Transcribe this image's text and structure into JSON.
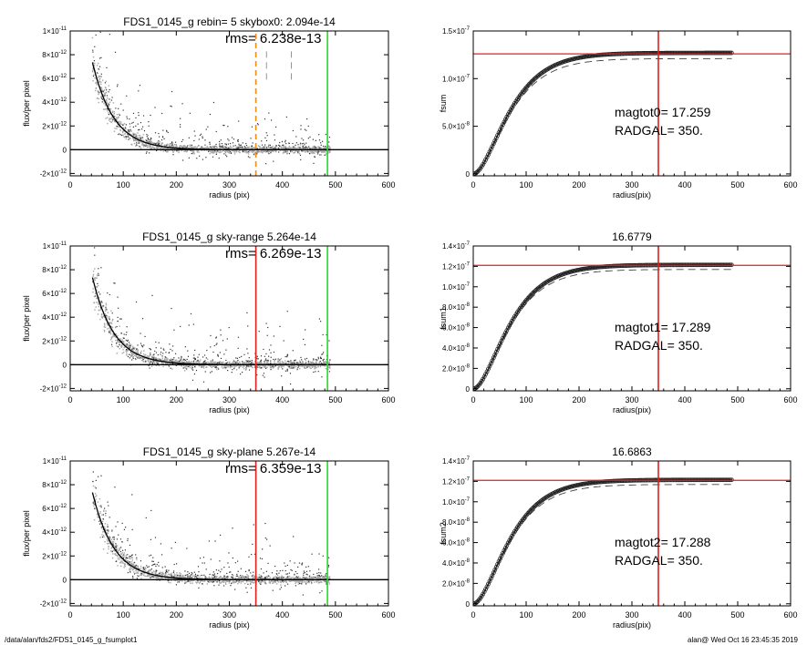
{
  "footer": {
    "left": "/data/alan/fds2/FDS1_0145_g_fsumplot1",
    "right": "alan@  Wed Oct 16 23:45:35 2019"
  },
  "colors": {
    "axis": "#000000",
    "scatter_light": "#a6a6a6",
    "scatter_dark": "#333333",
    "profile": "#000000",
    "red_line": "#e0201c",
    "green_line": "#22dd22",
    "orange_line": "#ee8a1c",
    "gray_dash": "#7a7a7a",
    "fsum_marker": "#222222"
  },
  "chart_data": [
    {
      "id": "profile-1",
      "type": "scatter",
      "title": "FDS1_0145_g rebin= 5    skybox0:  2.094e-14",
      "rms_label": "rms= 6.238e-13",
      "xlabel": "radius (pix)",
      "ylabel": "flux/per pixel",
      "xlim": [
        0,
        600
      ],
      "ylim": [
        -2.2e-12,
        1e-11
      ],
      "xticks": [
        0,
        100,
        200,
        300,
        400,
        500,
        600
      ],
      "yticks": [
        {
          "value": -2e-12,
          "mant": "-2×10",
          "exp": "-12"
        },
        {
          "value": 0,
          "mant": "0",
          "exp": ""
        },
        {
          "value": 2e-12,
          "mant": "2×10",
          "exp": "-12"
        },
        {
          "value": 4e-12,
          "mant": "4×10",
          "exp": "-12"
        },
        {
          "value": 6e-12,
          "mant": "6×10",
          "exp": "-12"
        },
        {
          "value": 8e-12,
          "mant": "8×10",
          "exp": "-12"
        },
        {
          "value": 1e-11,
          "mant": "1×10",
          "exp": "-11"
        }
      ],
      "profile": {
        "amplitude": 2.1e-11,
        "scale_length": 40,
        "center_start": 42
      },
      "hlines": [
        {
          "y": 0,
          "color": "#000000",
          "dash": ""
        }
      ],
      "vlines": [
        {
          "x": 350,
          "color": "#ee8a1c",
          "dash": "6,4",
          "width": 1.6
        },
        {
          "x": 370,
          "color": "#7a7a7a",
          "dash": "7,5",
          "width": 0.8,
          "y_range": [
            5.9e-12,
            8.5e-12
          ]
        },
        {
          "x": 417,
          "color": "#7a7a7a",
          "dash": "7,5",
          "width": 0.8,
          "y_range": [
            5.9e-12,
            8.5e-12
          ]
        },
        {
          "x": 485,
          "color": "#22dd22",
          "dash": "",
          "width": 1.6
        }
      ],
      "scatter_max_x": 490,
      "seed": 11
    },
    {
      "id": "fsum-1",
      "type": "line",
      "title": "",
      "xlabel": "radius(pix)",
      "ylabel": "fsum",
      "xlim": [
        0,
        600
      ],
      "ylim": [
        -2e-09,
        1.5e-07
      ],
      "xticks": [
        0,
        100,
        200,
        300,
        400,
        500,
        600
      ],
      "yticks": [
        {
          "value": 0,
          "mant": "0",
          "exp": ""
        },
        {
          "value": 5e-08,
          "mant": "5.0×10",
          "exp": "-8"
        },
        {
          "value": 1e-07,
          "mant": "1.0×10",
          "exp": "-7"
        },
        {
          "value": 1.5e-07,
          "mant": "1.5×10",
          "exp": "-7"
        }
      ],
      "asymptote": 1.27e-07,
      "dashed_asymptote": 1.21e-07,
      "scale_length": 40,
      "curve_max_x": 490,
      "hline": 1.26e-07,
      "vline": 350,
      "annotations": [
        "magtot0=  17.259",
        "RADGAL=    350."
      ]
    },
    {
      "id": "profile-2",
      "type": "scatter",
      "title": "FDS1_0145_g sky-range  5.264e-14",
      "rms_label": "rms= 6.269e-13",
      "xlabel": "radius (pix)",
      "ylabel": "flux/per pixel",
      "xlim": [
        0,
        600
      ],
      "ylim": [
        -2.2e-12,
        1e-11
      ],
      "xticks": [
        0,
        100,
        200,
        300,
        400,
        500,
        600
      ],
      "yticks": [
        {
          "value": -2e-12,
          "mant": "-2×10",
          "exp": "-12"
        },
        {
          "value": 0,
          "mant": "0",
          "exp": ""
        },
        {
          "value": 2e-12,
          "mant": "2×10",
          "exp": "-12"
        },
        {
          "value": 4e-12,
          "mant": "4×10",
          "exp": "-12"
        },
        {
          "value": 6e-12,
          "mant": "6×10",
          "exp": "-12"
        },
        {
          "value": 8e-12,
          "mant": "8×10",
          "exp": "-12"
        },
        {
          "value": 1e-11,
          "mant": "1×10",
          "exp": "-11"
        }
      ],
      "profile": {
        "amplitude": 2.1e-11,
        "scale_length": 40,
        "center_start": 42
      },
      "hlines": [
        {
          "y": 0,
          "color": "#000000",
          "dash": ""
        }
      ],
      "vlines": [
        {
          "x": 350,
          "color": "#e0201c",
          "dash": "",
          "width": 1.6
        },
        {
          "x": 485,
          "color": "#22dd22",
          "dash": "",
          "width": 1.6
        }
      ],
      "scatter_max_x": 490,
      "seed": 23
    },
    {
      "id": "fsum-2",
      "type": "line",
      "title": "16.6779",
      "xlabel": "radius(pix)",
      "ylabel": "fsum1",
      "xlim": [
        0,
        600
      ],
      "ylim": [
        -2e-09,
        1.4e-07
      ],
      "xticks": [
        0,
        100,
        200,
        300,
        400,
        500,
        600
      ],
      "yticks": [
        {
          "value": 0,
          "mant": "0",
          "exp": ""
        },
        {
          "value": 2e-08,
          "mant": "2.0×10",
          "exp": "-8"
        },
        {
          "value": 4e-08,
          "mant": "4.0×10",
          "exp": "-8"
        },
        {
          "value": 6e-08,
          "mant": "6.0×10",
          "exp": "-8"
        },
        {
          "value": 8e-08,
          "mant": "8.0×10",
          "exp": "-8"
        },
        {
          "value": 1e-07,
          "mant": "1.0×10",
          "exp": "-7"
        },
        {
          "value": 1.2e-07,
          "mant": "1.2×10",
          "exp": "-7"
        },
        {
          "value": 1.4e-07,
          "mant": "1.4×10",
          "exp": "-7"
        }
      ],
      "asymptote": 1.215e-07,
      "dashed_asymptote": 1.17e-07,
      "scale_length": 40,
      "curve_max_x": 490,
      "hline": 1.21e-07,
      "vline": 350,
      "annotations": [
        "magtot1=  17.289",
        "RADGAL=    350."
      ]
    },
    {
      "id": "profile-3",
      "type": "scatter",
      "title": "FDS1_0145_g sky-plane  5.267e-14",
      "rms_label": "rms= 6.359e-13",
      "xlabel": "radius (pix)",
      "ylabel": "flux/per pixel",
      "xlim": [
        0,
        600
      ],
      "ylim": [
        -2.2e-12,
        1e-11
      ],
      "xticks": [
        0,
        100,
        200,
        300,
        400,
        500,
        600
      ],
      "yticks": [
        {
          "value": -2e-12,
          "mant": "-2×10",
          "exp": "-12"
        },
        {
          "value": 0,
          "mant": "0",
          "exp": ""
        },
        {
          "value": 2e-12,
          "mant": "2×10",
          "exp": "-12"
        },
        {
          "value": 4e-12,
          "mant": "4×10",
          "exp": "-12"
        },
        {
          "value": 6e-12,
          "mant": "6×10",
          "exp": "-12"
        },
        {
          "value": 8e-12,
          "mant": "8×10",
          "exp": "-12"
        },
        {
          "value": 1e-11,
          "mant": "1×10",
          "exp": "-11"
        }
      ],
      "profile": {
        "amplitude": 2.1e-11,
        "scale_length": 40,
        "center_start": 42
      },
      "hlines": [
        {
          "y": 0,
          "color": "#000000",
          "dash": ""
        }
      ],
      "vlines": [
        {
          "x": 350,
          "color": "#e0201c",
          "dash": "",
          "width": 1.6
        },
        {
          "x": 485,
          "color": "#22dd22",
          "dash": "",
          "width": 1.6
        }
      ],
      "scatter_max_x": 490,
      "seed": 37
    },
    {
      "id": "fsum-3",
      "type": "line",
      "title": "16.6863",
      "xlabel": "radius(pix)",
      "ylabel": "fsum2",
      "xlim": [
        0,
        600
      ],
      "ylim": [
        -2e-09,
        1.4e-07
      ],
      "xticks": [
        0,
        100,
        200,
        300,
        400,
        500,
        600
      ],
      "yticks": [
        {
          "value": 0,
          "mant": "0",
          "exp": ""
        },
        {
          "value": 2e-08,
          "mant": "2.0×10",
          "exp": "-8"
        },
        {
          "value": 4e-08,
          "mant": "4.0×10",
          "exp": "-8"
        },
        {
          "value": 6e-08,
          "mant": "6.0×10",
          "exp": "-8"
        },
        {
          "value": 8e-08,
          "mant": "8.0×10",
          "exp": "-8"
        },
        {
          "value": 1e-07,
          "mant": "1.0×10",
          "exp": "-7"
        },
        {
          "value": 1.2e-07,
          "mant": "1.2×10",
          "exp": "-7"
        },
        {
          "value": 1.4e-07,
          "mant": "1.4×10",
          "exp": "-7"
        }
      ],
      "asymptote": 1.215e-07,
      "dashed_asymptote": 1.17e-07,
      "scale_length": 40,
      "curve_max_x": 490,
      "hline": 1.21e-07,
      "vline": 350,
      "annotations": [
        "magtot2=  17.288",
        "RADGAL=    350."
      ]
    }
  ]
}
